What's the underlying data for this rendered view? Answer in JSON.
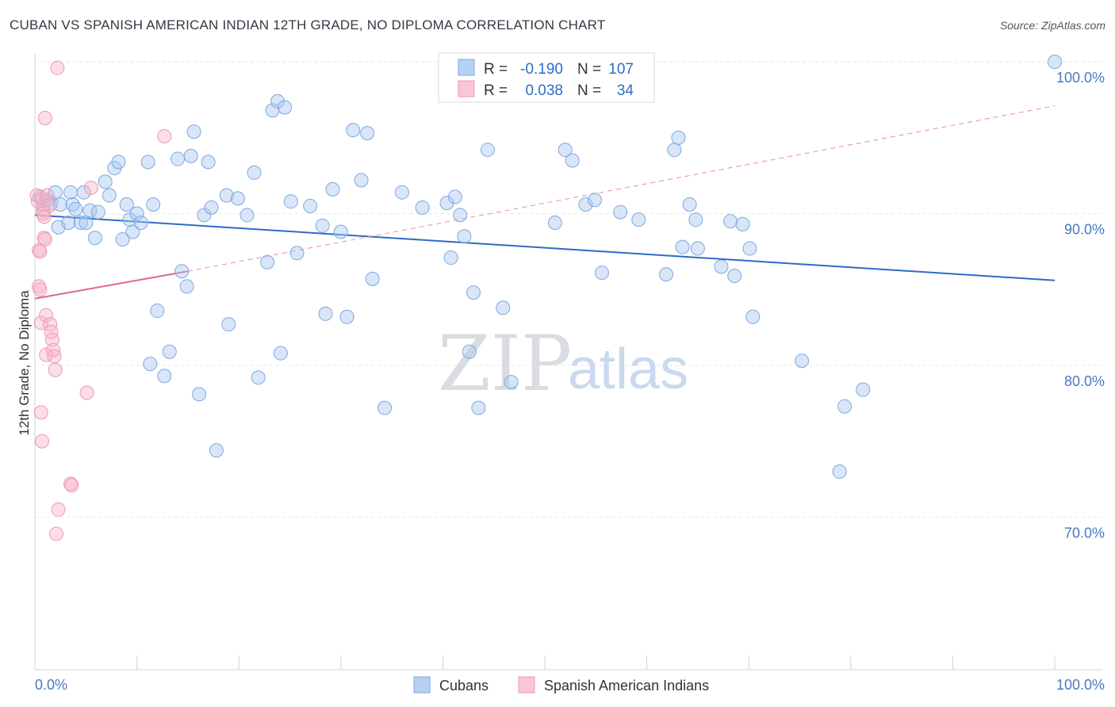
{
  "title": "CUBAN VS SPANISH AMERICAN INDIAN 12TH GRADE, NO DIPLOMA CORRELATION CHART",
  "source": "Source: ZipAtlas.com",
  "watermark": {
    "zip": "ZIP",
    "atlas": "atlas"
  },
  "legend": {
    "rows": [
      {
        "r_label": "R =",
        "r_value": "-0.190",
        "n_label": "N =",
        "n_value": "107",
        "color": "#a9c8f0"
      },
      {
        "r_label": "R =",
        "r_value": "0.038",
        "n_label": "N =",
        "n_value": "34",
        "color": "#f7b6c8"
      }
    ]
  },
  "bottom_legend": [
    {
      "label": "Cubans",
      "color": "#a9c8f0"
    },
    {
      "label": "Spanish American Indians",
      "color": "#f7b6c8"
    }
  ],
  "chart_data": {
    "type": "scatter",
    "title": "CUBAN VS SPANISH AMERICAN INDIAN 12TH GRADE, NO DIPLOMA CORRELATION CHART",
    "xlabel": "",
    "ylabel": "12th Grade, No Diploma",
    "xlim": [
      0,
      100
    ],
    "ylim": [
      60,
      102
    ],
    "x_tick_labels": [
      "0.0%",
      "100.0%"
    ],
    "y_ticks": [
      70,
      80,
      90,
      100
    ],
    "y_tick_labels": [
      "70.0%",
      "80.0%",
      "90.0%",
      "100.0%"
    ],
    "grid": true,
    "legend_position": "top-center",
    "series": [
      {
        "name": "Cubans",
        "color": "#6fa0e0",
        "trend": {
          "x": [
            0,
            100
          ],
          "y": [
            89.9,
            85.6
          ]
        },
        "points": [
          [
            0.5,
            91.1
          ],
          [
            0.8,
            90.6
          ],
          [
            1.2,
            90.9
          ],
          [
            1.6,
            90.7
          ],
          [
            2.0,
            91.4
          ],
          [
            2.3,
            89.1
          ],
          [
            2.5,
            90.6
          ],
          [
            3.3,
            89.4
          ],
          [
            3.5,
            91.4
          ],
          [
            3.7,
            90.6
          ],
          [
            4.0,
            90.3
          ],
          [
            4.5,
            89.4
          ],
          [
            4.8,
            91.4
          ],
          [
            5.0,
            89.4
          ],
          [
            5.4,
            90.2
          ],
          [
            5.9,
            88.4
          ],
          [
            6.2,
            90.1
          ],
          [
            6.9,
            92.1
          ],
          [
            7.3,
            91.2
          ],
          [
            7.8,
            93.0
          ],
          [
            8.2,
            93.4
          ],
          [
            8.6,
            88.3
          ],
          [
            9.0,
            90.6
          ],
          [
            9.3,
            89.6
          ],
          [
            9.6,
            88.8
          ],
          [
            10.0,
            90.0
          ],
          [
            10.4,
            89.4
          ],
          [
            11.1,
            93.4
          ],
          [
            11.3,
            80.1
          ],
          [
            11.6,
            90.6
          ],
          [
            12.0,
            83.6
          ],
          [
            12.7,
            79.3
          ],
          [
            13.2,
            80.9
          ],
          [
            14.0,
            93.6
          ],
          [
            14.4,
            86.2
          ],
          [
            14.9,
            85.2
          ],
          [
            15.3,
            93.8
          ],
          [
            15.6,
            95.4
          ],
          [
            16.1,
            78.1
          ],
          [
            16.6,
            89.9
          ],
          [
            17.0,
            93.4
          ],
          [
            17.3,
            90.4
          ],
          [
            17.8,
            74.4
          ],
          [
            18.8,
            91.2
          ],
          [
            19.0,
            82.7
          ],
          [
            19.9,
            91.0
          ],
          [
            20.8,
            89.9
          ],
          [
            21.5,
            92.7
          ],
          [
            21.9,
            79.2
          ],
          [
            22.8,
            86.8
          ],
          [
            23.3,
            96.8
          ],
          [
            23.8,
            97.4
          ],
          [
            24.1,
            80.8
          ],
          [
            24.5,
            97.0
          ],
          [
            25.1,
            90.8
          ],
          [
            25.7,
            87.4
          ],
          [
            27.0,
            90.5
          ],
          [
            28.2,
            89.2
          ],
          [
            28.5,
            83.4
          ],
          [
            29.2,
            91.6
          ],
          [
            30.0,
            88.8
          ],
          [
            30.6,
            83.2
          ],
          [
            31.2,
            95.5
          ],
          [
            32.0,
            92.2
          ],
          [
            32.6,
            95.3
          ],
          [
            33.1,
            85.7
          ],
          [
            34.3,
            77.2
          ],
          [
            36.0,
            91.4
          ],
          [
            38.0,
            90.4
          ],
          [
            40.4,
            90.7
          ],
          [
            40.8,
            87.1
          ],
          [
            41.2,
            91.1
          ],
          [
            41.7,
            89.9
          ],
          [
            42.1,
            88.5
          ],
          [
            42.6,
            80.9
          ],
          [
            43.0,
            84.8
          ],
          [
            43.5,
            77.2
          ],
          [
            44.4,
            94.2
          ],
          [
            45.9,
            83.8
          ],
          [
            46.7,
            78.9
          ],
          [
            51.0,
            89.4
          ],
          [
            52.0,
            94.2
          ],
          [
            52.7,
            93.5
          ],
          [
            54.0,
            90.6
          ],
          [
            54.9,
            90.9
          ],
          [
            55.6,
            86.1
          ],
          [
            57.4,
            90.1
          ],
          [
            59.2,
            89.6
          ],
          [
            61.9,
            86.0
          ],
          [
            62.7,
            94.2
          ],
          [
            63.1,
            95.0
          ],
          [
            63.5,
            87.8
          ],
          [
            64.2,
            90.6
          ],
          [
            64.8,
            89.6
          ],
          [
            65.0,
            87.7
          ],
          [
            67.3,
            86.5
          ],
          [
            68.2,
            89.5
          ],
          [
            68.6,
            85.9
          ],
          [
            69.4,
            89.3
          ],
          [
            70.1,
            87.7
          ],
          [
            70.4,
            83.2
          ],
          [
            75.2,
            80.3
          ],
          [
            78.9,
            73.0
          ],
          [
            79.4,
            77.3
          ],
          [
            81.2,
            78.4
          ],
          [
            100.0,
            100.0
          ]
        ]
      },
      {
        "name": "Spanish American Indians",
        "color": "#f08cab",
        "trend": {
          "x": [
            0,
            15
          ],
          "y": [
            84.4,
            86.2
          ]
        },
        "points": [
          [
            0.2,
            91.2
          ],
          [
            0.3,
            90.8
          ],
          [
            0.4,
            87.6
          ],
          [
            0.4,
            85.2
          ],
          [
            0.5,
            87.5
          ],
          [
            0.5,
            85.0
          ],
          [
            0.6,
            82.8
          ],
          [
            0.6,
            76.9
          ],
          [
            0.7,
            75.0
          ],
          [
            0.7,
            91.0
          ],
          [
            0.8,
            90.2
          ],
          [
            0.8,
            90.0
          ],
          [
            0.9,
            88.4
          ],
          [
            1.0,
            88.3
          ],
          [
            1.0,
            96.3
          ],
          [
            1.1,
            83.3
          ],
          [
            1.1,
            80.7
          ],
          [
            1.2,
            91.2
          ],
          [
            1.4,
            90.5
          ],
          [
            1.5,
            82.7
          ],
          [
            1.6,
            82.2
          ],
          [
            1.7,
            81.7
          ],
          [
            1.8,
            81.0
          ],
          [
            1.9,
            80.6
          ],
          [
            2.0,
            79.7
          ],
          [
            2.1,
            68.9
          ],
          [
            2.3,
            70.5
          ],
          [
            2.2,
            99.6
          ],
          [
            3.5,
            72.2
          ],
          [
            3.6,
            72.1
          ],
          [
            5.1,
            78.2
          ],
          [
            5.5,
            91.7
          ],
          [
            12.7,
            95.1
          ],
          [
            0.9,
            89.8
          ]
        ]
      }
    ]
  }
}
